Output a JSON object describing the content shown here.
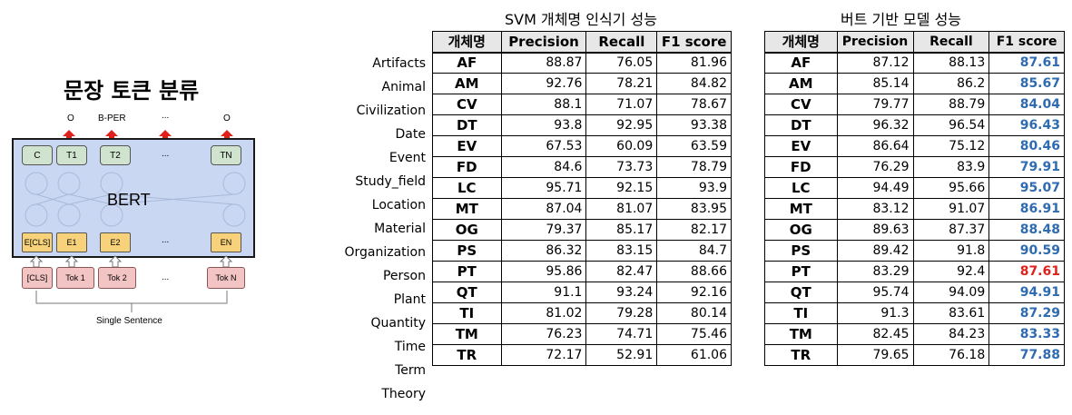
{
  "figure": {
    "title": "문장 토큰 분류",
    "output_labels": [
      "O",
      "B-PER",
      "...",
      "O"
    ],
    "model_label": "BERT",
    "top_tokens": [
      "C",
      "T1",
      "T2",
      "...",
      "TN"
    ],
    "embed_tokens": [
      "E[CLS]",
      "E1",
      "E2",
      "...",
      "EN"
    ],
    "input_tokens": [
      "[CLS]",
      "Tok 1",
      "Tok 2",
      "...",
      "Tok N"
    ],
    "sentence_label": "Single Sentence"
  },
  "row_labels": [
    "Artifacts",
    "Animal",
    "Civilization",
    "Date",
    "Event",
    "Study_field",
    "Location",
    "Material",
    "Organization",
    "Person",
    "Plant",
    "Quantity",
    "Time",
    "Term",
    "Theory"
  ],
  "svm_table": {
    "title": "SVM 개체명 인식기 성능",
    "headers": [
      "개체명",
      "Precision",
      "Recall",
      "F1 score"
    ],
    "rows": [
      [
        "AF",
        "88.87",
        "76.05",
        "81.96"
      ],
      [
        "AM",
        "92.76",
        "78.21",
        "84.82"
      ],
      [
        "CV",
        "88.1",
        "71.07",
        "78.67"
      ],
      [
        "DT",
        "93.8",
        "92.95",
        "93.38"
      ],
      [
        "EV",
        "67.53",
        "60.09",
        "63.59"
      ],
      [
        "FD",
        "84.6",
        "73.73",
        "78.79"
      ],
      [
        "LC",
        "95.71",
        "92.15",
        "93.9"
      ],
      [
        "MT",
        "87.04",
        "81.07",
        "83.95"
      ],
      [
        "OG",
        "79.37",
        "85.17",
        "82.17"
      ],
      [
        "PS",
        "86.32",
        "83.15",
        "84.7"
      ],
      [
        "PT",
        "95.86",
        "82.47",
        "88.66"
      ],
      [
        "QT",
        "91.1",
        "93.24",
        "92.16"
      ],
      [
        "TI",
        "81.02",
        "79.28",
        "80.14"
      ],
      [
        "TM",
        "76.23",
        "74.71",
        "75.46"
      ],
      [
        "TR",
        "72.17",
        "52.91",
        "61.06"
      ]
    ]
  },
  "bert_table": {
    "title": "버트 기반 모델 성능",
    "headers": [
      "개체명",
      "Precision",
      "Recall",
      "F1 score"
    ],
    "rows": [
      [
        "AF",
        "87.12",
        "88.13",
        "87.61"
      ],
      [
        "AM",
        "85.14",
        "86.2",
        "85.67"
      ],
      [
        "CV",
        "79.77",
        "88.79",
        "84.04"
      ],
      [
        "DT",
        "96.32",
        "96.54",
        "96.43"
      ],
      [
        "EV",
        "86.64",
        "75.12",
        "80.46"
      ],
      [
        "FD",
        "76.29",
        "83.9",
        "79.91"
      ],
      [
        "LC",
        "94.49",
        "95.66",
        "95.07"
      ],
      [
        "MT",
        "83.12",
        "91.07",
        "86.91"
      ],
      [
        "OG",
        "89.63",
        "87.37",
        "88.48"
      ],
      [
        "PS",
        "89.42",
        "91.8",
        "90.59"
      ],
      [
        "PT",
        "83.29",
        "92.4",
        "87.61"
      ],
      [
        "QT",
        "95.74",
        "94.09",
        "94.91"
      ],
      [
        "TI",
        "91.3",
        "83.61",
        "87.29"
      ],
      [
        "TM",
        "82.45",
        "84.23",
        "83.33"
      ],
      [
        "TR",
        "79.65",
        "76.18",
        "77.88"
      ]
    ],
    "f1_highlight_color": "#2e6bb0",
    "f1_worse_color": "#e0201b",
    "worse_row_code": "PT"
  },
  "colors": {
    "arrow_red": "#e0201b",
    "bert_fill": "#c9d7f2",
    "top_token_fill": "#cfe3cf",
    "embed_fill": "#f7d27a",
    "input_fill": "#f3c4c4"
  }
}
